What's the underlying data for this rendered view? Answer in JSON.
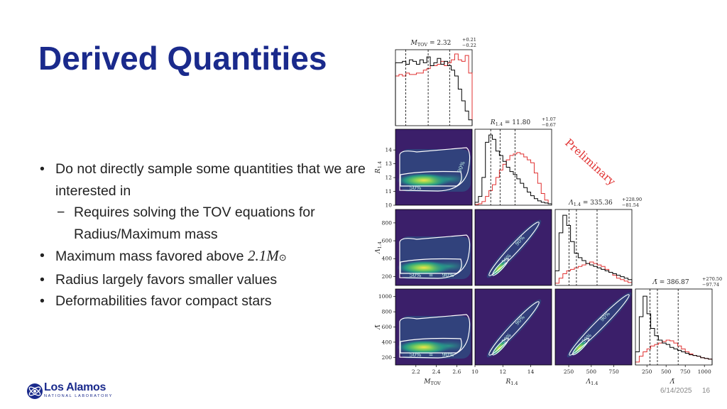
{
  "slide": {
    "title": "Derived Quantities",
    "bullets": [
      {
        "text": "Do not directly sample some quantities that we are interested in",
        "level": 1
      },
      {
        "text": "Requires solving the TOV equations for Radius/Maximum mass",
        "level": 2
      },
      {
        "text": "Maximum mass favored above ",
        "math": "2.1M",
        "math_sub": "⊙",
        "level": 1
      },
      {
        "text": "Radius largely favors smaller values",
        "level": 1
      },
      {
        "text": "Deformabilities favor compact stars",
        "level": 1
      }
    ],
    "bullet_glyph": "•",
    "sub_bullet_glyph": "−",
    "date": "6/14/2025",
    "page": "16",
    "logo": {
      "name": "Los Alamos",
      "subtitle": "NATIONAL LABORATORY",
      "icon": "atom-logo-icon"
    },
    "watermark": "Preliminary"
  },
  "chart_data": {
    "type": "corner",
    "parameters": [
      {
        "key": "mtov",
        "title": "M_TOV = 2.32 (+0.21 / −0.22)",
        "title_main": "M",
        "title_sub": "TOV",
        "value": "2.32",
        "err_up": "+0.21",
        "err_down": "−0.22",
        "median": 2.32,
        "range": [
          2.0,
          2.75
        ],
        "ticks": [
          2.2,
          2.4,
          2.6
        ],
        "tick_labels": [
          "2.2",
          "2.4",
          "2.6"
        ],
        "label": "M",
        "label_sub": "TOV",
        "quantiles": [
          2.1,
          2.32,
          2.53
        ]
      },
      {
        "key": "r14",
        "title": "R_1.4 = 11.80 (+1.07 / −0.67)",
        "title_main": "R",
        "title_sub": "1.4",
        "value": "11.80",
        "err_up": "+1.07",
        "err_down": "−0.67",
        "median": 11.8,
        "range": [
          10,
          15.5
        ],
        "ticks": [
          10,
          12,
          14
        ],
        "tick_labels": [
          "10",
          "12",
          "14"
        ],
        "label": "R",
        "label_sub": "1.4",
        "y_ticks": [
          10,
          11,
          12,
          13,
          14
        ],
        "y_tick_labels": [
          "10",
          "11",
          "12",
          "13",
          "14"
        ],
        "quantiles": [
          11.13,
          11.8,
          12.87
        ]
      },
      {
        "key": "lam14",
        "title": "Λ_1.4 = 335.36 (+228.90 / −81.54)",
        "title_main": "Λ",
        "title_sub": "1.4",
        "value": "335.36",
        "err_up": "+228.90",
        "err_down": "−81.54",
        "median": 335.36,
        "range": [
          100,
          950
        ],
        "ticks": [
          250,
          500,
          750
        ],
        "tick_labels": [
          "250",
          "500",
          "750"
        ],
        "label": "Λ",
        "label_sub": "1.4",
        "y_ticks": [
          200,
          400,
          600,
          800
        ],
        "y_tick_labels": [
          "200",
          "400",
          "600",
          "800"
        ],
        "quantiles": [
          253.82,
          335.36,
          564.26
        ]
      },
      {
        "key": "lamt",
        "title": "Λ̃ = 386.87 (+270.50 / −97.74)",
        "title_main": "Λ̃",
        "title_sub": "",
        "value": "386.87",
        "err_up": "+270.50",
        "err_down": "−97.74",
        "median": 386.87,
        "range": [
          100,
          1100
        ],
        "ticks": [
          250,
          500,
          750,
          1000
        ],
        "tick_labels": [
          "250",
          "500",
          "750",
          "1000"
        ],
        "label": "Λ̃",
        "label_sub": "",
        "y_ticks": [
          200,
          400,
          600,
          800,
          1000
        ],
        "y_tick_labels": [
          "200",
          "400",
          "600",
          "800",
          "1000"
        ],
        "quantiles": [
          289.13,
          386.87,
          657.37
        ]
      }
    ],
    "series": [
      {
        "name": "",
        "color": "#000000"
      },
      {
        "name": "",
        "color": "#e03030"
      }
    ],
    "contour_labels": [
      "50%",
      "90%"
    ],
    "colors": {
      "density_bg": "#3b1f6a",
      "contour": "#ffffff",
      "black": "#000000",
      "red": "#e03030"
    },
    "hist_mtov": {
      "black": [
        0.86,
        0.86,
        0.88,
        0.84,
        0.9,
        0.88,
        0.84,
        0.9,
        0.86,
        0.94,
        0.82,
        0.86,
        0.92,
        0.84,
        0.88,
        0.82,
        0.76,
        0.68,
        0.5,
        0.34,
        0.2,
        0.08
      ],
      "red": [
        0.68,
        0.7,
        0.68,
        0.72,
        0.7,
        0.7,
        0.72,
        0.72,
        0.76,
        0.78,
        0.82,
        0.82,
        0.84,
        0.88,
        0.82,
        0.86,
        0.9,
        0.98,
        0.9,
        0.88,
        0.96,
        0.72
      ]
    },
    "hist_r14": {
      "black": [
        0.04,
        0.12,
        0.38,
        0.86,
        0.96,
        0.9,
        0.74,
        0.68,
        0.6,
        0.52,
        0.46,
        0.42,
        0.36,
        0.3,
        0.24,
        0.18,
        0.13,
        0.09,
        0.06,
        0.04,
        0.03,
        0.02
      ],
      "red": [
        0.01,
        0.02,
        0.05,
        0.12,
        0.2,
        0.28,
        0.38,
        0.48,
        0.56,
        0.62,
        0.68,
        0.7,
        0.72,
        0.7,
        0.66,
        0.62,
        0.58,
        0.44,
        0.3,
        0.16,
        0.07,
        0.02
      ]
    },
    "hist_lam14": {
      "black": [
        0.2,
        0.72,
        0.96,
        0.82,
        0.6,
        0.44,
        0.38,
        0.34,
        0.3,
        0.28,
        0.26,
        0.24,
        0.22,
        0.2,
        0.18,
        0.16,
        0.14,
        0.12,
        0.1,
        0.08
      ],
      "red": [
        0.03,
        0.1,
        0.16,
        0.2,
        0.22,
        0.24,
        0.26,
        0.28,
        0.3,
        0.32,
        0.3,
        0.28,
        0.26,
        0.22,
        0.18,
        0.14,
        0.1,
        0.08,
        0.06,
        0.04
      ]
    },
    "hist_lamt": {
      "black": [
        0.18,
        0.66,
        0.94,
        0.7,
        0.5,
        0.4,
        0.34,
        0.3,
        0.28,
        0.24,
        0.22,
        0.2,
        0.18,
        0.16,
        0.14,
        0.13,
        0.12,
        0.1,
        0.09,
        0.08
      ],
      "red": [
        0.04,
        0.12,
        0.18,
        0.22,
        0.26,
        0.28,
        0.3,
        0.32,
        0.34,
        0.33,
        0.3,
        0.26,
        0.22,
        0.18,
        0.15,
        0.13,
        0.12,
        0.1,
        0.09,
        0.08
      ]
    }
  }
}
